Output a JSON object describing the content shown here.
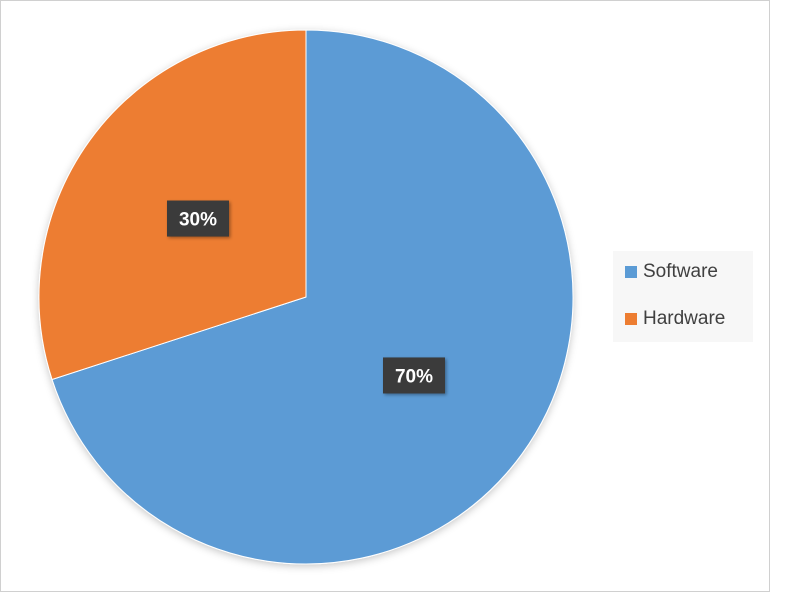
{
  "chart_data": {
    "type": "pie",
    "categories": [
      "Software",
      "Hardware"
    ],
    "values": [
      70,
      30
    ],
    "data_labels": [
      "70%",
      "30%"
    ],
    "colors": [
      "#5B9BD5",
      "#ED7D31"
    ],
    "start_angle_deg": 0,
    "direction": "clockwise",
    "legend_position": "right"
  },
  "legend": {
    "items": [
      {
        "label": "Software",
        "color": "#5B9BD5"
      },
      {
        "label": "Hardware",
        "color": "#ED7D31"
      }
    ]
  }
}
